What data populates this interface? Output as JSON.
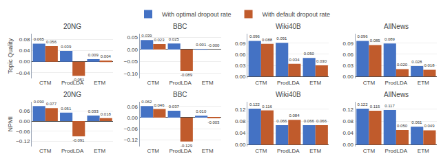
{
  "chart_data": [
    {
      "type": "bar",
      "title": "20NG",
      "ylabel": "Topic Quality",
      "legend": "top",
      "categories": [
        "CTM",
        "ProdLDA",
        "ETM"
      ],
      "series": [
        {
          "name": "With optimal dropout rate",
          "color": "#4472C4",
          "values": [
            0.065,
            0.039,
            0.009
          ],
          "value_labels": [
            "0.065",
            "0.039",
            "0.009"
          ]
        },
        {
          "name": "With default dropout rate",
          "color": "#C05B2C",
          "values": [
            0.056,
            -0.051,
            0.004
          ],
          "value_labels": [
            "0.056",
            "-0.051",
            "0.004"
          ]
        }
      ],
      "ylim": [
        -0.06,
        0.1
      ],
      "yticks": [
        {
          "value": -0.04,
          "label": "−0.04"
        },
        {
          "value": 0.0,
          "label": "0.00"
        },
        0.04,
        0.08
      ],
      "grid": true,
      "data_labels": true
    },
    {
      "type": "bar",
      "title": "BBC",
      "categories": [
        "CTM",
        "ProdLDA",
        "ETM"
      ],
      "series": [
        {
          "name": "With optimal dropout rate",
          "color": "#4472C4",
          "values": [
            0.039,
            0.025,
            0.001
          ],
          "value_labels": [
            "0.039",
            "0.025",
            "0.001"
          ]
        },
        {
          "name": "With default dropout rate",
          "color": "#C05B2C",
          "values": [
            0.023,
            -0.089,
            -0.0
          ],
          "value_labels": [
            "0.023",
            "-0.089",
            "-0.000"
          ]
        }
      ],
      "ylim": [
        -0.12,
        0.065
      ],
      "yticks": [
        {
          "value": -0.1,
          "label": "−0.10"
        },
        {
          "value": -0.05,
          "label": "−0.05"
        },
        {
          "value": 0.0,
          "label": "0.00"
        },
        0.05
      ],
      "grid": true,
      "data_labels": true
    },
    {
      "type": "bar",
      "title": "Wiki40B",
      "categories": [
        "CTM",
        "ProdLDA",
        "ETM"
      ],
      "series": [
        {
          "name": "With optimal dropout rate",
          "color": "#4472C4",
          "values": [
            0.096,
            0.091,
            0.05
          ],
          "value_labels": [
            "0.096",
            "0.091",
            "0.050"
          ]
        },
        {
          "name": "With default dropout rate",
          "color": "#C05B2C",
          "values": [
            0.088,
            0.034,
            0.03
          ],
          "value_labels": [
            "0.088",
            "0.034",
            "0.030"
          ]
        }
      ],
      "ylim": [
        -0.005,
        0.115
      ],
      "yticks": [
        {
          "value": 0.0,
          "label": "0.00"
        },
        0.03,
        0.06,
        0.09
      ],
      "grid": true,
      "data_labels": true
    },
    {
      "type": "bar",
      "title": "AllNews",
      "categories": [
        "CTM",
        "ProdLDA",
        "ETM"
      ],
      "series": [
        {
          "name": "With optimal dropout rate",
          "color": "#4472C4",
          "values": [
            0.096,
            0.089,
            0.028
          ],
          "value_labels": [
            "0.096",
            "0.089",
            "0.028"
          ]
        },
        {
          "name": "With default dropout rate",
          "color": "#C05B2C",
          "values": [
            0.085,
            0.02,
            0.018
          ],
          "value_labels": [
            "0.085",
            "0.020",
            "0.018"
          ]
        }
      ],
      "ylim": [
        -0.005,
        0.115
      ],
      "yticks": [
        {
          "value": 0.0,
          "label": "0.00"
        },
        0.03,
        0.06,
        0.09
      ],
      "grid": true,
      "data_labels": true
    },
    {
      "type": "bar",
      "title": "20NG",
      "ylabel": "NPMI",
      "categories": [
        "CTM",
        "ProdLDA",
        "ETM"
      ],
      "series": [
        {
          "name": "With optimal dropout rate",
          "color": "#4472C4",
          "values": [
            0.09,
            0.051,
            0.033
          ],
          "value_labels": [
            "0.090",
            "0.051",
            "0.033"
          ]
        },
        {
          "name": "With default dropout rate",
          "color": "#C05B2C",
          "values": [
            0.077,
            -0.091,
            0.018
          ],
          "value_labels": [
            "0.077",
            "-0.091",
            "0.018"
          ]
        }
      ],
      "ylim": [
        -0.15,
        0.115
      ],
      "yticks": [
        {
          "value": -0.12,
          "label": "−0.12"
        },
        {
          "value": -0.06,
          "label": "−0.06"
        },
        {
          "value": 0.0,
          "label": "0.00"
        },
        0.06
      ],
      "grid": true,
      "data_labels": true
    },
    {
      "type": "bar",
      "title": "BBC",
      "categories": [
        "CTM",
        "ProdLDA",
        "ETM"
      ],
      "series": [
        {
          "name": "With optimal dropout rate",
          "color": "#4472C4",
          "values": [
            0.062,
            0.037,
            0.01
          ],
          "value_labels": [
            "0.062",
            "0.037",
            "0.010"
          ]
        },
        {
          "name": "With default dropout rate",
          "color": "#C05B2C",
          "values": [
            0.046,
            -0.129,
            -0.003
          ],
          "value_labels": [
            "0.046",
            "-0.129",
            "-0.003"
          ]
        }
      ],
      "ylim": [
        -0.155,
        0.085
      ],
      "yticks": [
        {
          "value": -0.12,
          "label": "−0.12"
        },
        {
          "value": -0.06,
          "label": "−0.06"
        },
        {
          "value": 0.0,
          "label": "0.00"
        },
        0.06
      ],
      "grid": true,
      "data_labels": true
    },
    {
      "type": "bar",
      "title": "Wiki40B",
      "categories": [
        "CTM",
        "ProdLDA",
        "ETM"
      ],
      "series": [
        {
          "name": "With optimal dropout rate",
          "color": "#4472C4",
          "values": [
            0.122,
            0.066,
            0.066
          ],
          "value_labels": [
            "0.122",
            "0.066",
            "0.066"
          ]
        },
        {
          "name": "With default dropout rate",
          "color": "#C05B2C",
          "values": [
            0.116,
            0.084,
            0.066
          ],
          "value_labels": [
            "0.116",
            "0.084",
            "0.066"
          ]
        }
      ],
      "ylim": [
        -0.005,
        0.145
      ],
      "yticks": [
        {
          "value": 0.0,
          "label": "0.00"
        },
        0.04,
        0.08,
        0.12
      ],
      "grid": true,
      "data_labels": true
    },
    {
      "type": "bar",
      "title": "AllNews",
      "categories": [
        "CTM",
        "ProdLDA",
        "ETM"
      ],
      "series": [
        {
          "name": "With optimal dropout rate",
          "color": "#4472C4",
          "values": [
            0.122,
            0.117,
            0.061
          ],
          "value_labels": [
            "0.122",
            "0.117",
            "0.061"
          ]
        },
        {
          "name": "With default dropout rate",
          "color": "#C05B2C",
          "values": [
            0.115,
            0.05,
            0.049
          ],
          "value_labels": [
            "0.115",
            "0.050",
            "0.049"
          ]
        }
      ],
      "ylim": [
        -0.005,
        0.145
      ],
      "yticks": [
        {
          "value": 0.0,
          "label": "0.00"
        },
        0.04,
        0.08,
        0.12
      ],
      "grid": true,
      "data_labels": true
    }
  ]
}
